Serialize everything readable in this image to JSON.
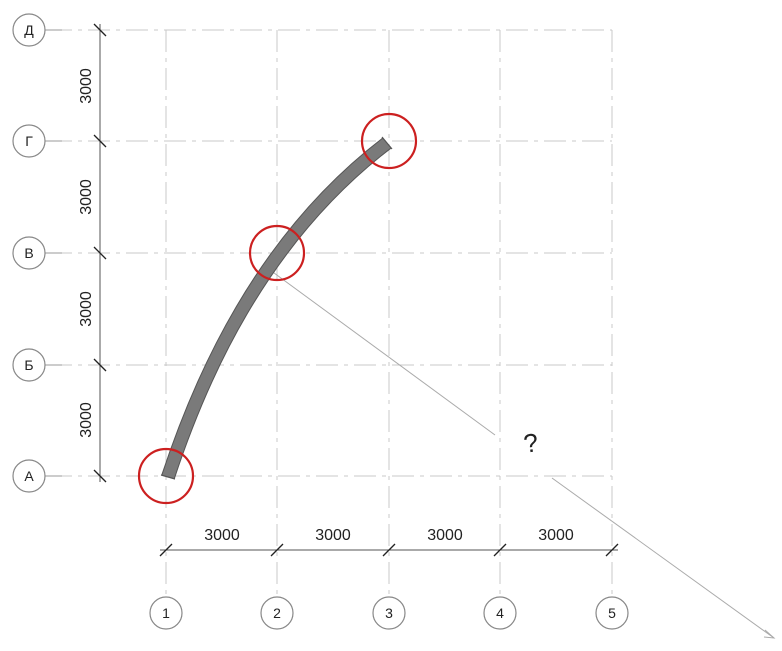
{
  "diagram": {
    "row_axes": [
      {
        "label": "Д"
      },
      {
        "label": "Г"
      },
      {
        "label": "В"
      },
      {
        "label": "Б"
      },
      {
        "label": "А"
      }
    ],
    "column_axes": [
      {
        "label": "1"
      },
      {
        "label": "2"
      },
      {
        "label": "3"
      },
      {
        "label": "4"
      },
      {
        "label": "5"
      }
    ],
    "row_spacings": [
      "3000",
      "3000",
      "3000",
      "3000"
    ],
    "column_spacings": [
      "3000",
      "3000",
      "3000",
      "3000"
    ],
    "beam": {
      "start_axis": "А/1",
      "passes_through": "В/2",
      "end_axis": "Г/3",
      "beam_color": "#7a7a7a"
    },
    "highlight_color": "#cc2020",
    "question_mark": "?"
  }
}
